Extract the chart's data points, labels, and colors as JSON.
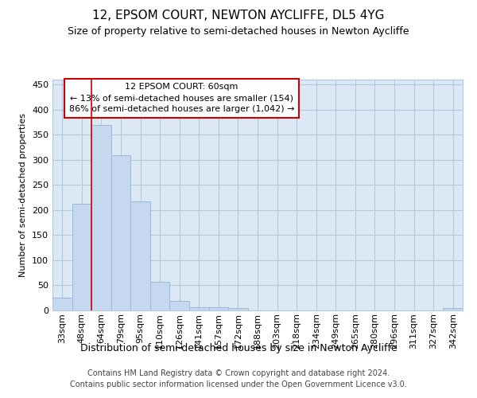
{
  "title": "12, EPSOM COURT, NEWTON AYCLIFFE, DL5 4YG",
  "subtitle": "Size of property relative to semi-detached houses in Newton Aycliffe",
  "xlabel": "Distribution of semi-detached houses by size in Newton Aycliffe",
  "ylabel": "Number of semi-detached properties",
  "categories": [
    "33sqm",
    "48sqm",
    "64sqm",
    "79sqm",
    "95sqm",
    "110sqm",
    "126sqm",
    "141sqm",
    "157sqm",
    "172sqm",
    "188sqm",
    "203sqm",
    "218sqm",
    "234sqm",
    "249sqm",
    "265sqm",
    "280sqm",
    "296sqm",
    "311sqm",
    "327sqm",
    "342sqm"
  ],
  "values": [
    25,
    212,
    370,
    310,
    218,
    57,
    19,
    7,
    6,
    4,
    0,
    0,
    0,
    0,
    0,
    0,
    0,
    0,
    0,
    0,
    5
  ],
  "bar_color": "#c5d8ef",
  "bar_edge_color": "#9ab8d8",
  "marker_line_color": "#cc0000",
  "annotation_box_edge_color": "#cc0000",
  "annotation_text_line1": "12 EPSOM COURT: 60sqm",
  "annotation_text_line2": "← 13% of semi-detached houses are smaller (154)",
  "annotation_text_line3": "86% of semi-detached houses are larger (1,042) →",
  "ylim": [
    0,
    460
  ],
  "yticks": [
    0,
    50,
    100,
    150,
    200,
    250,
    300,
    350,
    400,
    450
  ],
  "axes_bg_color": "#dce9f5",
  "grid_color": "#b0c8e0",
  "title_fontsize": 11,
  "subtitle_fontsize": 9,
  "ylabel_fontsize": 8,
  "xlabel_fontsize": 9,
  "tick_fontsize": 8,
  "footer_line1": "Contains HM Land Registry data © Crown copyright and database right 2024.",
  "footer_line2": "Contains public sector information licensed under the Open Government Licence v3.0.",
  "footer_fontsize": 7
}
